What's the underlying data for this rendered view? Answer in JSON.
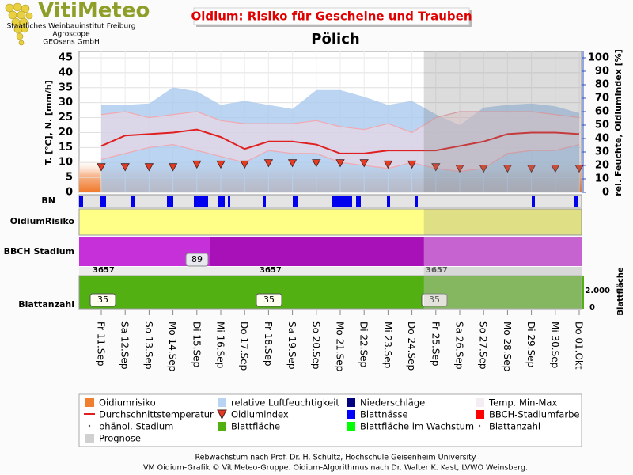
{
  "header": {
    "logo": "VitiMeteo",
    "org_lines": [
      "Staatliches Weinbauinstitut Freiburg",
      "Agroscope",
      "GEOsens GmbH"
    ]
  },
  "chart_data": {
    "type": "line",
    "title": "Oidium: Risiko für Gescheine und Trauben",
    "subtitle": "Pölich",
    "ylabel": "T. [°C], N. [mm/h]",
    "y2label": "rel. Feuchte, OidiumIndex [%]",
    "categories": [
      "Fr 11.Sep",
      "Sa 12.Sep",
      "So 13.Sep",
      "Mo 14.Sep",
      "Di 15.Sep",
      "Mi 16.Sep",
      "Do 17.Sep",
      "Fr 18.Sep",
      "Sa 19.Sep",
      "So 20.Sep",
      "Mo 21.Sep",
      "Di 22.Sep",
      "Mi 23.Sep",
      "Do 24.Sep",
      "Fr 25.Sep",
      "Sa 26.Sep",
      "So 27.Sep",
      "Mo 28.Sep",
      "Di 29.Sep",
      "Mi 30.Sep",
      "Do 01.Okt"
    ],
    "ylim": [
      0,
      45
    ],
    "yticks": [
      0,
      5,
      10,
      15,
      20,
      25,
      30,
      35,
      40,
      45
    ],
    "y2lim": [
      0,
      100
    ],
    "y2ticks": [
      0,
      10,
      20,
      30,
      40,
      50,
      60,
      70,
      80,
      90,
      100
    ],
    "grid": true,
    "forecast_from": "Fr 25.Sep",
    "series": [
      {
        "name": "relative Luftfeuchtigkeit",
        "color": "#a9c9ee",
        "axis": "y2",
        "values": [
          65,
          65,
          66,
          78,
          75,
          65,
          68,
          65,
          62,
          76,
          76,
          71,
          65,
          68,
          58,
          50,
          63,
          65,
          66,
          64,
          59
        ]
      },
      {
        "name": "Temp. Max",
        "color": "#f2a8b0",
        "values": [
          26,
          27,
          25,
          26,
          27,
          24,
          23,
          23,
          23,
          24,
          22,
          21,
          23,
          20,
          25,
          27,
          27,
          27,
          27,
          26,
          25
        ]
      },
      {
        "name": "Temp. Min",
        "color": "#f2a8b0",
        "values": [
          11,
          13,
          15,
          16,
          14,
          12,
          10,
          14,
          13,
          13,
          10,
          9,
          8,
          10,
          8,
          7,
          8,
          13,
          14,
          14,
          16
        ]
      },
      {
        "name": "Durchschnittstemperatur",
        "color": "#e02020",
        "values": [
          15.5,
          19,
          19.5,
          20,
          21,
          18.5,
          14.5,
          17,
          17,
          16,
          13,
          13,
          14,
          14,
          14,
          15.5,
          17,
          19.5,
          20,
          20,
          19.5
        ]
      },
      {
        "name": "Oidiumindex",
        "color": "#e83a20",
        "axis": "y2",
        "values": [
          19,
          19,
          19,
          19,
          21,
          21,
          21,
          22,
          22,
          22,
          22,
          22,
          21,
          21,
          19,
          18,
          18,
          18,
          18,
          18,
          18
        ]
      }
    ]
  },
  "panels": {
    "bn": {
      "label": "BN"
    },
    "risk": {
      "label": "OidiumRisiko"
    },
    "bbch": {
      "label": "BBCH Stadium",
      "stage_label": "89"
    },
    "leaves": {
      "label": "Blattanzahl",
      "axis_label": "Blattfläche",
      "ticks": [
        "0",
        "2.000"
      ],
      "area_labels": [
        "3657",
        "3657",
        "3657"
      ],
      "count_labels": [
        "35",
        "35",
        "35"
      ]
    }
  },
  "legend": [
    {
      "label": "Oidiumrisiko",
      "symbol": "square",
      "color": "#f08030"
    },
    {
      "label": "relative Luftfeuchtigkeit",
      "symbol": "square",
      "color": "#b8d4f2"
    },
    {
      "label": "Niederschläge",
      "symbol": "square",
      "color": "#000080"
    },
    {
      "label": "Temp. Min-Max",
      "symbol": "square",
      "color": "#f4eef4"
    },
    {
      "label": "Durchschnittstemperatur",
      "symbol": "line",
      "color": "#e02020"
    },
    {
      "label": "Oidiumindex",
      "symbol": "triangle",
      "color": "#e83a20"
    },
    {
      "label": "Blattnässe",
      "symbol": "square",
      "color": "#0000ff"
    },
    {
      "label": "BBCH-Stadiumfarbe",
      "symbol": "square",
      "color": "#ff0000"
    },
    {
      "label": "phänol. Stadium",
      "symbol": "dot",
      "color": "#555555"
    },
    {
      "label": "Blattfläche",
      "symbol": "square",
      "color": "#50b010"
    },
    {
      "label": "Blattfläche im Wachstum",
      "symbol": "square",
      "color": "#00ff00"
    },
    {
      "label": "Blattanzahl",
      "symbol": "dot",
      "color": "#555555"
    },
    {
      "label": "Prognose",
      "symbol": "square",
      "color": "#d0d0d0"
    }
  ],
  "footer": [
    "Rebwachstum nach Prof. Dr. H. Schultz, Hochschule Geisenheim University",
    "VM Oidium-Grafik © VitiMeteo-Gruppe. Oidium-Algorithmus nach Dr. Walter K. Kast, LVWO Weinsberg."
  ]
}
